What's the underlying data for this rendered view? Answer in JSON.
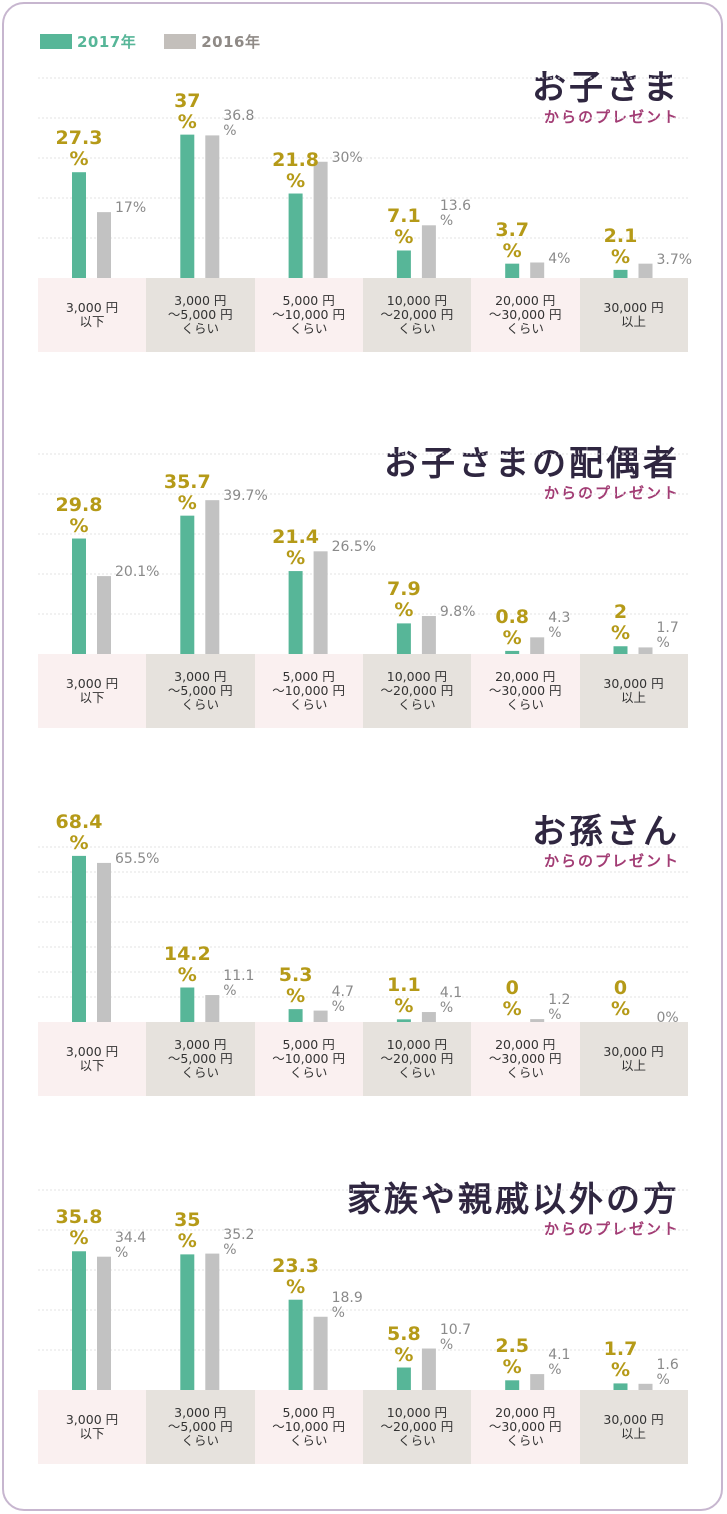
{
  "legend": {
    "items": [
      {
        "label": "2017年",
        "color": "#57b698"
      },
      {
        "label": "2016年",
        "color": "#c3bfbb"
      }
    ]
  },
  "colors": {
    "bar_2017": "#57b698",
    "bar_2016": "#c2c2c2",
    "label_2017": "#b59a18",
    "label_2016": "#8a8a8a",
    "cat_bg_pink": "#faf0f0",
    "cat_bg_gray": "#e6e2dd",
    "gridline": "#e3e3e3",
    "frame": "#c7b6cf",
    "title": "#2f2640",
    "subtitle": "#a23c74"
  },
  "chart_data": [
    {
      "type": "bar",
      "title": "お子さま",
      "subtitle": "からのプレゼント",
      "ylim": [
        0,
        40
      ],
      "categories": [
        "3,000 円\n以下",
        "3,000 円\n〜5,000 円\nくらい",
        "5,000 円\n〜10,000 円\nくらい",
        "10,000 円\n〜20,000 円\nくらい",
        "20,000 円\n〜30,000 円\nくらい",
        "30,000 円\n以上"
      ],
      "series": [
        {
          "name": "2017年",
          "values": [
            27.3,
            37,
            21.8,
            7.1,
            3.7,
            2.1
          ],
          "labels": [
            "27.3\n%",
            "37\n%",
            "21.8\n%",
            "7.1\n%",
            "3.7\n%",
            "2.1\n%"
          ]
        },
        {
          "name": "2016年",
          "values": [
            17,
            36.8,
            30,
            13.6,
            4,
            3.7
          ],
          "labels": [
            "17%",
            "36.8\n%",
            "30%",
            "13.6\n%",
            "4%",
            "3.7%"
          ]
        }
      ]
    },
    {
      "type": "bar",
      "title": "お子さまの配偶者",
      "subtitle": "からのプレゼント",
      "ylim": [
        0,
        40
      ],
      "categories": [
        "3,000 円\n以下",
        "3,000 円\n〜5,000 円\nくらい",
        "5,000 円\n〜10,000 円\nくらい",
        "10,000 円\n〜20,000 円\nくらい",
        "20,000 円\n〜30,000 円\nくらい",
        "30,000 円\n以上"
      ],
      "series": [
        {
          "name": "2017年",
          "values": [
            29.8,
            35.7,
            21.4,
            7.9,
            0.8,
            2
          ],
          "labels": [
            "29.8\n%",
            "35.7\n%",
            "21.4\n%",
            "7.9\n%",
            "0.8\n%",
            "2\n%"
          ]
        },
        {
          "name": "2016年",
          "values": [
            20.1,
            39.7,
            26.5,
            9.8,
            4.3,
            1.7
          ],
          "labels": [
            "20.1%",
            "39.7%",
            "26.5%",
            "9.8%",
            "4.3\n%",
            "1.7\n%"
          ]
        }
      ]
    },
    {
      "type": "bar",
      "title": "お孫さん",
      "subtitle": "からのプレゼント",
      "ylim": [
        0,
        70
      ],
      "categories": [
        "3,000 円\n以下",
        "3,000 円\n〜5,000 円\nくらい",
        "5,000 円\n〜10,000 円\nくらい",
        "10,000 円\n〜20,000 円\nくらい",
        "20,000 円\n〜30,000 円\nくらい",
        "30,000 円\n以上"
      ],
      "series": [
        {
          "name": "2017年",
          "values": [
            68.4,
            14.2,
            5.3,
            1.1,
            0,
            0
          ],
          "labels": [
            "68.4\n%",
            "14.2\n%",
            "5.3\n%",
            "1.1\n%",
            "0\n%",
            "0\n%"
          ]
        },
        {
          "name": "2016年",
          "values": [
            65.5,
            11.1,
            4.7,
            4.1,
            1.2,
            0
          ],
          "labels": [
            "65.5%",
            "11.1\n%",
            "4.7\n%",
            "4.1\n%",
            "1.2\n%",
            "0%"
          ]
        }
      ]
    },
    {
      "type": "bar",
      "title": "家族や親戚以外の方",
      "subtitle": "からのプレゼント",
      "ylim": [
        0,
        40
      ],
      "categories": [
        "3,000 円\n以下",
        "3,000 円\n〜5,000 円\nくらい",
        "5,000 円\n〜10,000 円\nくらい",
        "10,000 円\n〜20,000 円\nくらい",
        "20,000 円\n〜30,000 円\nくらい",
        "30,000 円\n以上"
      ],
      "series": [
        {
          "name": "2017年",
          "values": [
            35.8,
            35,
            23.3,
            5.8,
            2.5,
            1.7
          ],
          "labels": [
            "35.8\n%",
            "35\n%",
            "23.3\n%",
            "5.8\n%",
            "2.5\n%",
            "1.7\n%"
          ]
        },
        {
          "name": "2016年",
          "values": [
            34.4,
            35.2,
            18.9,
            10.7,
            4.1,
            1.6
          ],
          "labels": [
            "34.4\n%",
            "35.2\n%",
            "18.9\n%",
            "10.7\n%",
            "4.1\n%",
            "1.6\n%"
          ]
        }
      ]
    }
  ]
}
